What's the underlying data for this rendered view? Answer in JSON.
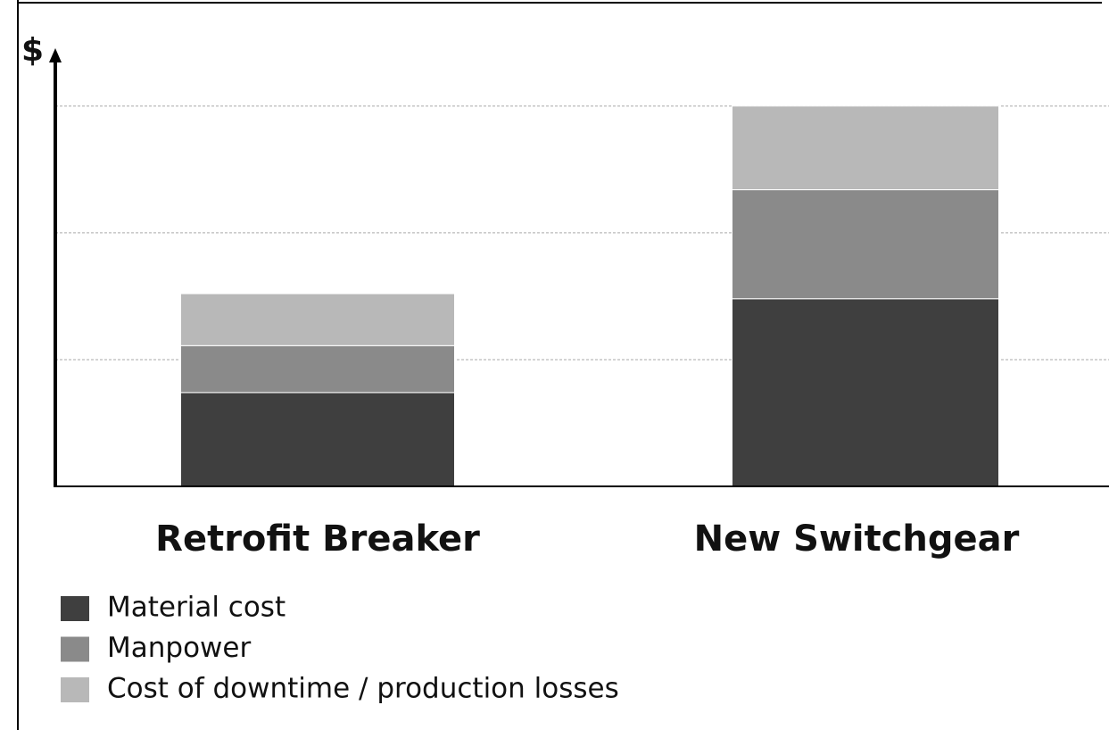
{
  "chart_data": {
    "type": "stacked_bar",
    "y_label": "$",
    "categories": [
      "Retrofit Breaker",
      "New Switchgear"
    ],
    "series": [
      {
        "name": "Material cost",
        "color": "#3f3f3f",
        "values": [
          0.74,
          1.48
        ]
      },
      {
        "name": "Manpower",
        "color": "#8a8a8a",
        "values": [
          0.37,
          0.86
        ]
      },
      {
        "name": "Cost of downtime / production losses",
        "color": "#b8b8b8",
        "values": [
          0.41,
          0.66
        ]
      }
    ],
    "ylim": [
      0,
      3.4
    ],
    "yticks": [
      1,
      2,
      3
    ],
    "grid": true
  }
}
